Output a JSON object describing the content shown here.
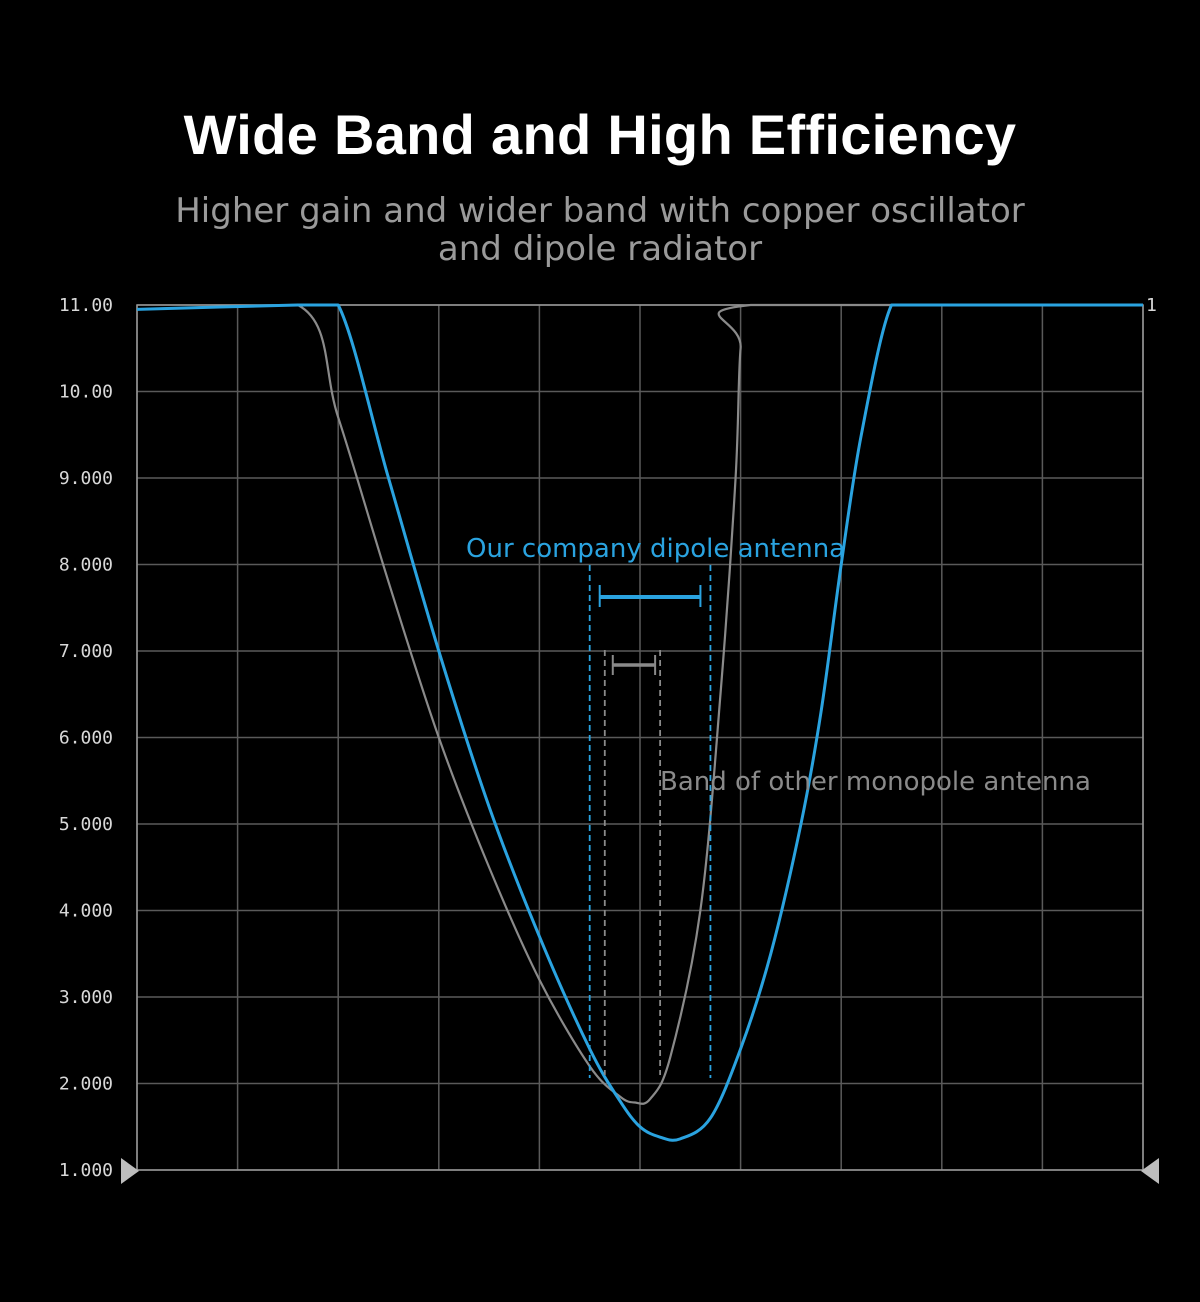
{
  "header": {
    "title": "Wide Band and High Efficiency",
    "subtitle_lines": [
      "Higher gain and wider band with copper oscillator",
      "and dipole radiator"
    ]
  },
  "colors": {
    "background": "#000000",
    "grid": "#5a5a5a",
    "dipole": "#2aa3e0",
    "monopole": "#8a8a8a",
    "ticks": "#d8d8d8"
  },
  "chart_data": {
    "type": "line",
    "title": "",
    "xlabel": "",
    "ylabel": "",
    "ylim": [
      1,
      11
    ],
    "xlim": [
      0,
      10
    ],
    "grid": true,
    "y_ticks": [
      1,
      2,
      3,
      4,
      5,
      6,
      7,
      8,
      9,
      10,
      11
    ],
    "y_tick_labels": [
      "1.000",
      "2.000",
      "3.000",
      "4.000",
      "5.000",
      "6.000",
      "7.000",
      "8.000",
      "9.000",
      "10.00",
      "11.00"
    ],
    "marker_label": "1",
    "series": [
      {
        "name": "Our company dipole antenna",
        "color": "#2aa3e0",
        "x": [
          0,
          1.6,
          2.0,
          2.5,
          3.0,
          3.5,
          4.0,
          4.5,
          4.8,
          5.0,
          5.2,
          5.4,
          5.7,
          6.0,
          6.3,
          6.6,
          6.8,
          7.0,
          7.2,
          7.5,
          7.8,
          10
        ],
        "y": [
          10.95,
          11.0,
          11.0,
          9.0,
          7.0,
          5.2,
          3.7,
          2.4,
          1.8,
          1.5,
          1.38,
          1.36,
          1.6,
          2.4,
          3.5,
          5.0,
          6.3,
          8.0,
          9.5,
          11.0,
          11.0,
          11.0
        ]
      },
      {
        "name": "Band of other monopole antenna",
        "color": "#8a8a8a",
        "x": [
          0,
          1.6,
          2.0,
          2.5,
          3.0,
          3.5,
          4.0,
          4.5,
          4.8,
          4.95,
          5.1,
          5.3,
          5.6,
          5.8,
          5.95,
          6.0,
          6.1,
          10
        ],
        "y": [
          10.95,
          11.0,
          9.7,
          7.8,
          6.0,
          4.5,
          3.2,
          2.2,
          1.85,
          1.78,
          1.82,
          2.3,
          4.0,
          6.5,
          9.0,
          10.5,
          11.0,
          11.0
        ]
      }
    ],
    "annotations": [
      {
        "text": "Our company dipole antenna",
        "band_x": [
          4.5,
          5.7
        ],
        "color": "#2aa3e0"
      },
      {
        "text": "Band of other monopole antenna",
        "band_x": [
          4.65,
          5.2
        ],
        "color": "#8a8a8a"
      }
    ]
  }
}
